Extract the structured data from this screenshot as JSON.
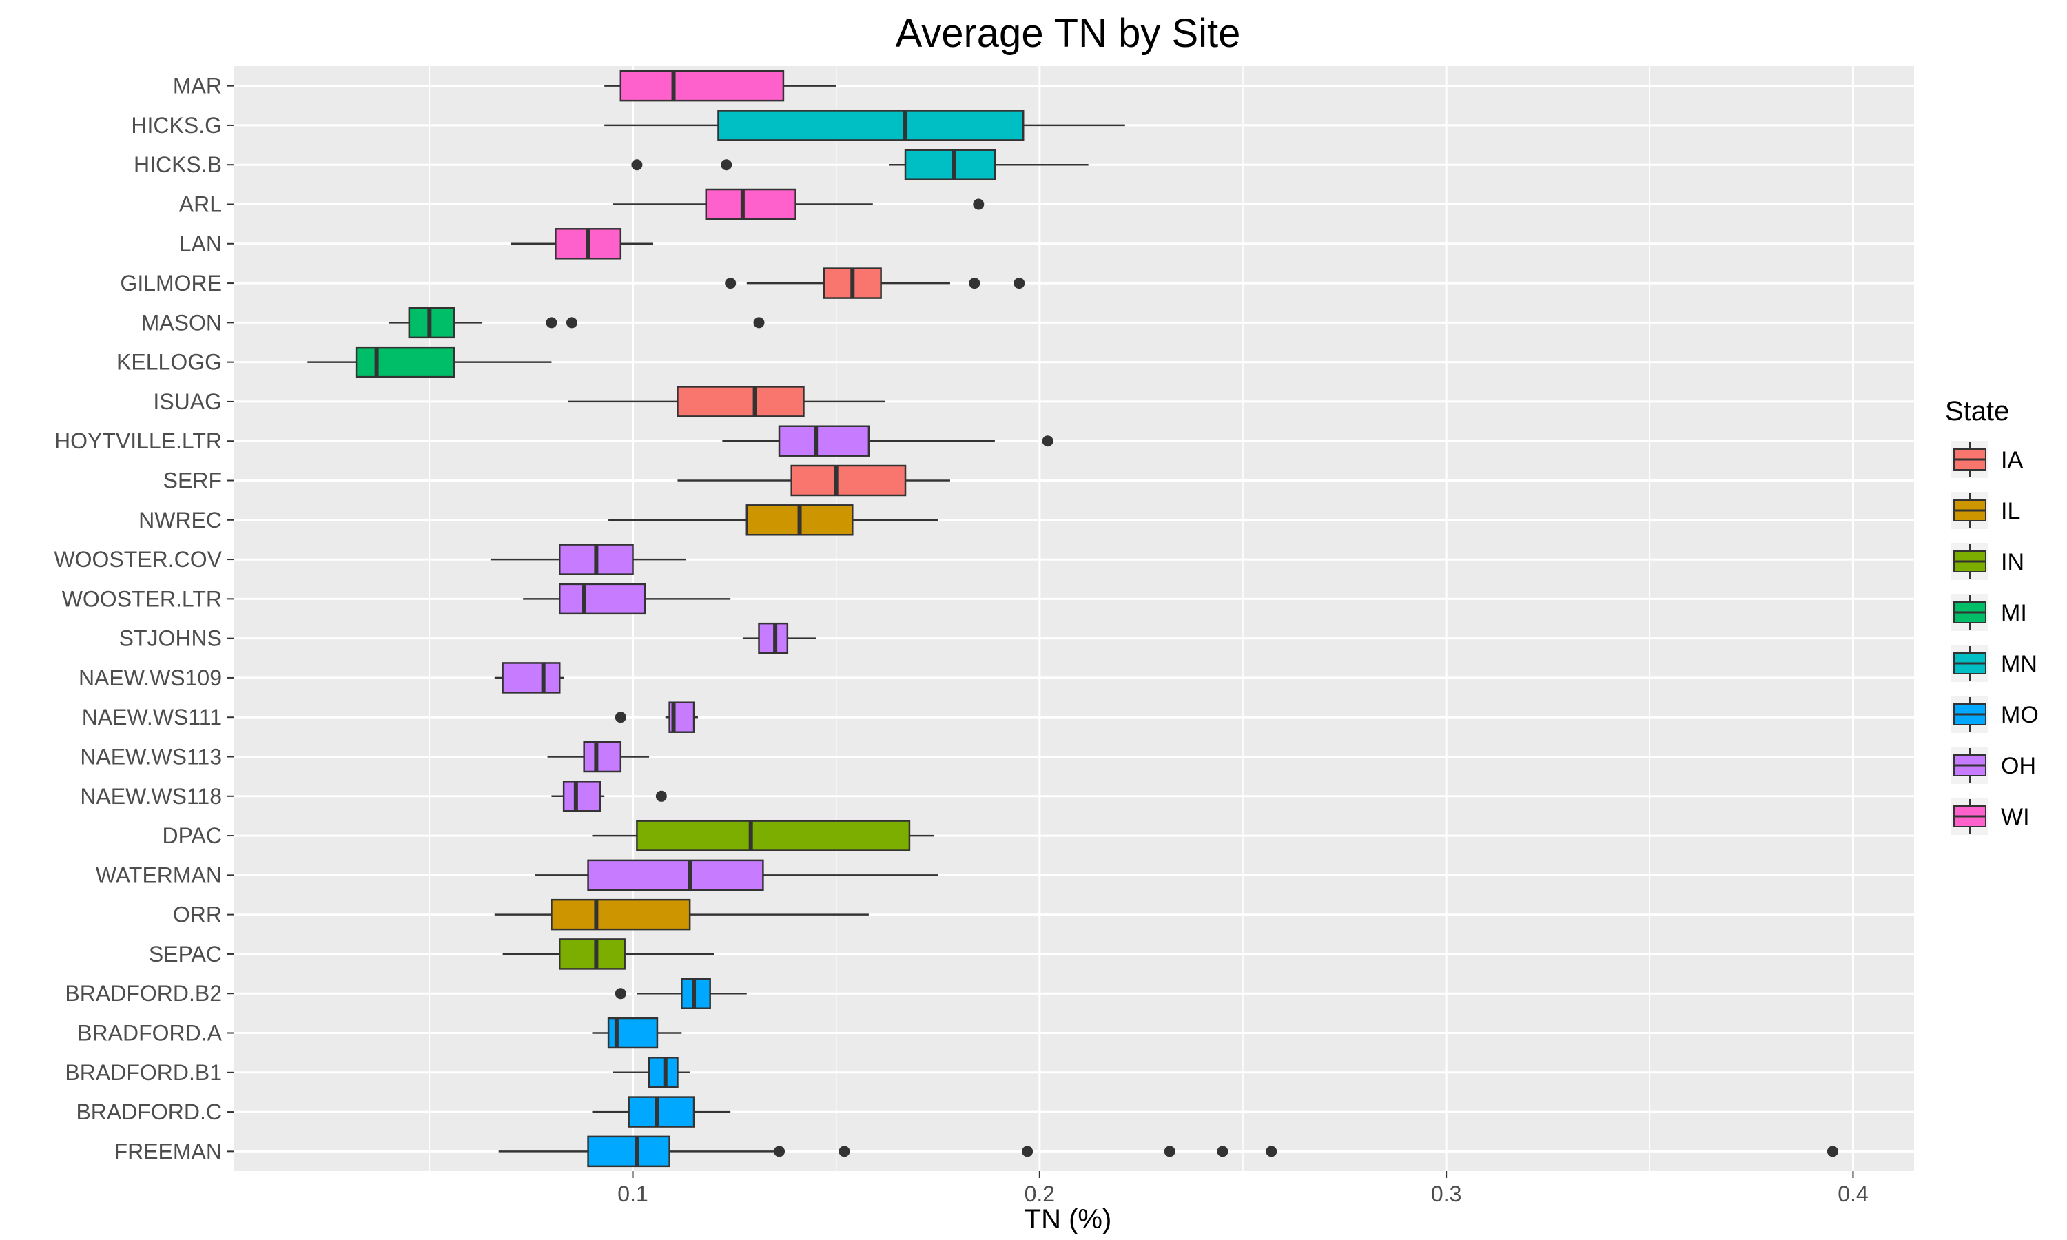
{
  "chart_data": {
    "type": "boxplot",
    "title": "Average TN by Site",
    "xlabel": "TN (%)",
    "ylabel": "",
    "xlim": [
      0.002,
      0.415
    ],
    "xticks": [
      {
        "value": 0.1,
        "label": "0.1"
      },
      {
        "value": 0.2,
        "label": "0.2"
      },
      {
        "value": 0.3,
        "label": "0.3"
      },
      {
        "value": 0.4,
        "label": "0.4"
      }
    ],
    "minor_gridlines": [
      0.05,
      0.15,
      0.25,
      0.35
    ],
    "grid": true,
    "legend": {
      "title": "State",
      "position": "right",
      "entries": [
        {
          "name": "IA",
          "color": "#F8766D"
        },
        {
          "name": "IL",
          "color": "#CD9600"
        },
        {
          "name": "IN",
          "color": "#7CAE00"
        },
        {
          "name": "MI",
          "color": "#00BE67"
        },
        {
          "name": "MN",
          "color": "#00BFC4"
        },
        {
          "name": "MO",
          "color": "#00A9FF"
        },
        {
          "name": "OH",
          "color": "#C77CFF"
        },
        {
          "name": "WI",
          "color": "#FF61CC"
        }
      ]
    },
    "categories": [
      "MAR",
      "HICKS.G",
      "HICKS.B",
      "ARL",
      "LAN",
      "GILMORE",
      "MASON",
      "KELLOGG",
      "ISUAG",
      "HOYTVILLE.LTR",
      "SERF",
      "NWREC",
      "WOOSTER.COV",
      "WOOSTER.LTR",
      "STJOHNS",
      "NAEW.WS109",
      "NAEW.WS111",
      "NAEW.WS113",
      "NAEW.WS118",
      "DPAC",
      "WATERMAN",
      "ORR",
      "SEPAC",
      "BRADFORD.B2",
      "BRADFORD.A",
      "BRADFORD.B1",
      "BRADFORD.C",
      "FREEMAN"
    ],
    "boxes": [
      {
        "site": "MAR",
        "state": "WI",
        "whisker_low": 0.093,
        "q1": 0.097,
        "median": 0.11,
        "q3": 0.137,
        "whisker_high": 0.15,
        "outliers": []
      },
      {
        "site": "HICKS.G",
        "state": "MN",
        "whisker_low": 0.093,
        "q1": 0.121,
        "median": 0.167,
        "q3": 0.196,
        "whisker_high": 0.221,
        "outliers": []
      },
      {
        "site": "HICKS.B",
        "state": "MN",
        "whisker_low": 0.163,
        "q1": 0.167,
        "median": 0.179,
        "q3": 0.189,
        "whisker_high": 0.212,
        "outliers": [
          0.101,
          0.123
        ]
      },
      {
        "site": "ARL",
        "state": "WI",
        "whisker_low": 0.095,
        "q1": 0.118,
        "median": 0.127,
        "q3": 0.14,
        "whisker_high": 0.159,
        "outliers": [
          0.185
        ]
      },
      {
        "site": "LAN",
        "state": "WI",
        "whisker_low": 0.07,
        "q1": 0.081,
        "median": 0.089,
        "q3": 0.097,
        "whisker_high": 0.105,
        "outliers": []
      },
      {
        "site": "GILMORE",
        "state": "IA",
        "whisker_low": 0.128,
        "q1": 0.147,
        "median": 0.154,
        "q3": 0.161,
        "whisker_high": 0.178,
        "outliers": [
          0.124,
          0.184,
          0.195
        ]
      },
      {
        "site": "MASON",
        "state": "MI",
        "whisker_low": 0.04,
        "q1": 0.045,
        "median": 0.05,
        "q3": 0.056,
        "whisker_high": 0.063,
        "outliers": [
          0.08,
          0.085,
          0.131
        ]
      },
      {
        "site": "KELLOGG",
        "state": "MI",
        "whisker_low": 0.02,
        "q1": 0.032,
        "median": 0.037,
        "q3": 0.056,
        "whisker_high": 0.08,
        "outliers": []
      },
      {
        "site": "ISUAG",
        "state": "IA",
        "whisker_low": 0.084,
        "q1": 0.111,
        "median": 0.13,
        "q3": 0.142,
        "whisker_high": 0.162,
        "outliers": []
      },
      {
        "site": "HOYTVILLE.LTR",
        "state": "OH",
        "whisker_low": 0.122,
        "q1": 0.136,
        "median": 0.145,
        "q3": 0.158,
        "whisker_high": 0.189,
        "outliers": [
          0.202
        ]
      },
      {
        "site": "SERF",
        "state": "IA",
        "whisker_low": 0.111,
        "q1": 0.139,
        "median": 0.15,
        "q3": 0.167,
        "whisker_high": 0.178,
        "outliers": []
      },
      {
        "site": "NWREC",
        "state": "IL",
        "whisker_low": 0.094,
        "q1": 0.128,
        "median": 0.141,
        "q3": 0.154,
        "whisker_high": 0.175,
        "outliers": []
      },
      {
        "site": "WOOSTER.COV",
        "state": "OH",
        "whisker_low": 0.065,
        "q1": 0.082,
        "median": 0.091,
        "q3": 0.1,
        "whisker_high": 0.113,
        "outliers": []
      },
      {
        "site": "WOOSTER.LTR",
        "state": "OH",
        "whisker_low": 0.073,
        "q1": 0.082,
        "median": 0.088,
        "q3": 0.103,
        "whisker_high": 0.124,
        "outliers": []
      },
      {
        "site": "STJOHNS",
        "state": "OH",
        "whisker_low": 0.127,
        "q1": 0.131,
        "median": 0.135,
        "q3": 0.138,
        "whisker_high": 0.145,
        "outliers": []
      },
      {
        "site": "NAEW.WS109",
        "state": "OH",
        "whisker_low": 0.066,
        "q1": 0.068,
        "median": 0.078,
        "q3": 0.082,
        "whisker_high": 0.083,
        "outliers": []
      },
      {
        "site": "NAEW.WS111",
        "state": "OH",
        "whisker_low": 0.108,
        "q1": 0.109,
        "median": 0.11,
        "q3": 0.115,
        "whisker_high": 0.116,
        "outliers": [
          0.097
        ]
      },
      {
        "site": "NAEW.WS113",
        "state": "OH",
        "whisker_low": 0.079,
        "q1": 0.088,
        "median": 0.091,
        "q3": 0.097,
        "whisker_high": 0.104,
        "outliers": []
      },
      {
        "site": "NAEW.WS118",
        "state": "OH",
        "whisker_low": 0.08,
        "q1": 0.083,
        "median": 0.086,
        "q3": 0.092,
        "whisker_high": 0.093,
        "outliers": [
          0.107
        ]
      },
      {
        "site": "DPAC",
        "state": "IN",
        "whisker_low": 0.09,
        "q1": 0.101,
        "median": 0.129,
        "q3": 0.168,
        "whisker_high": 0.174,
        "outliers": []
      },
      {
        "site": "WATERMAN",
        "state": "OH",
        "whisker_low": 0.076,
        "q1": 0.089,
        "median": 0.114,
        "q3": 0.132,
        "whisker_high": 0.175,
        "outliers": []
      },
      {
        "site": "ORR",
        "state": "IL",
        "whisker_low": 0.066,
        "q1": 0.08,
        "median": 0.091,
        "q3": 0.114,
        "whisker_high": 0.158,
        "outliers": []
      },
      {
        "site": "SEPAC",
        "state": "IN",
        "whisker_low": 0.068,
        "q1": 0.082,
        "median": 0.091,
        "q3": 0.098,
        "whisker_high": 0.12,
        "outliers": []
      },
      {
        "site": "BRADFORD.B2",
        "state": "MO",
        "whisker_low": 0.101,
        "q1": 0.112,
        "median": 0.115,
        "q3": 0.119,
        "whisker_high": 0.128,
        "outliers": [
          0.097
        ]
      },
      {
        "site": "BRADFORD.A",
        "state": "MO",
        "whisker_low": 0.09,
        "q1": 0.094,
        "median": 0.096,
        "q3": 0.106,
        "whisker_high": 0.112,
        "outliers": []
      },
      {
        "site": "BRADFORD.B1",
        "state": "MO",
        "whisker_low": 0.095,
        "q1": 0.104,
        "median": 0.108,
        "q3": 0.111,
        "whisker_high": 0.114,
        "outliers": []
      },
      {
        "site": "BRADFORD.C",
        "state": "MO",
        "whisker_low": 0.09,
        "q1": 0.099,
        "median": 0.106,
        "q3": 0.115,
        "whisker_high": 0.124,
        "outliers": []
      },
      {
        "site": "FREEMAN",
        "state": "MO",
        "whisker_low": 0.067,
        "q1": 0.089,
        "median": 0.101,
        "q3": 0.109,
        "whisker_high": 0.136,
        "outliers": [
          0.136,
          0.152,
          0.197,
          0.232,
          0.245,
          0.257,
          0.395
        ]
      }
    ]
  }
}
